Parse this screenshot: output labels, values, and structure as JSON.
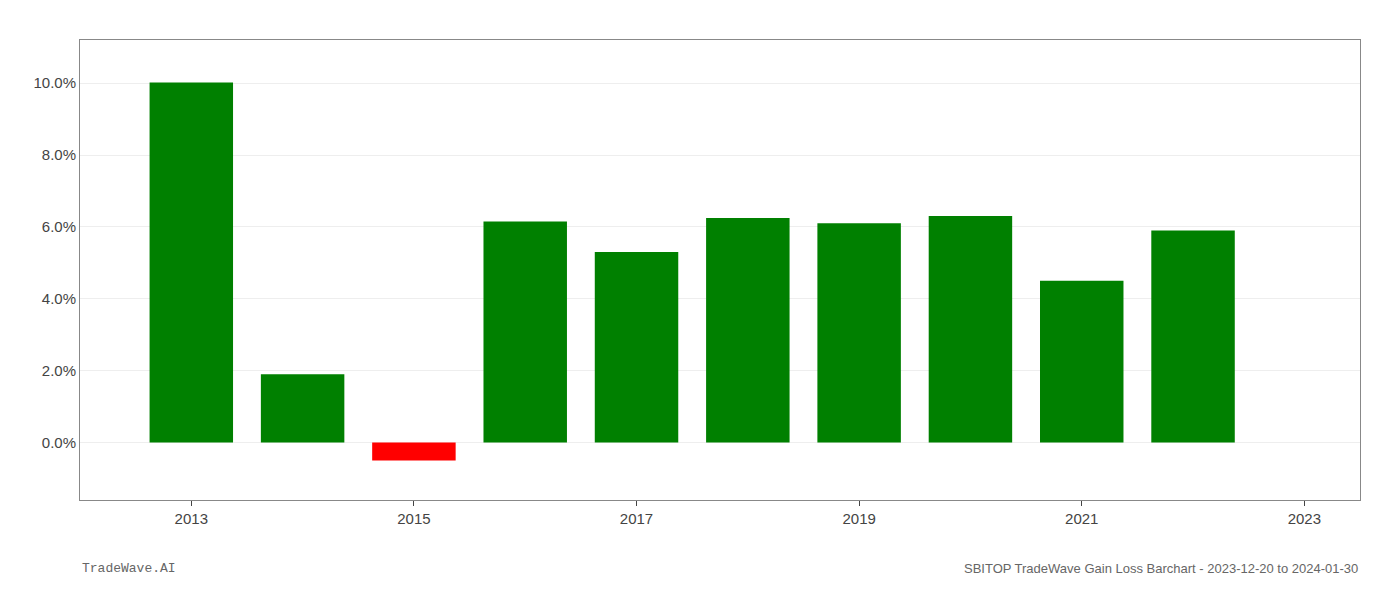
{
  "chart_data": {
    "type": "bar",
    "x": [
      2013,
      2014,
      2015,
      2016,
      2017,
      2018,
      2019,
      2020,
      2021,
      2022
    ],
    "values": [
      0.1002,
      0.019,
      -0.005,
      0.0615,
      0.053,
      0.0625,
      0.061,
      0.063,
      0.045,
      0.059
    ],
    "colors": [
      "#008000",
      "#008000",
      "#ff0000",
      "#008000",
      "#008000",
      "#008000",
      "#008000",
      "#008000",
      "#008000",
      "#008000"
    ],
    "xlim": [
      2012.0,
      2023.5
    ],
    "xticks": [
      2013,
      2015,
      2017,
      2019,
      2021,
      2023
    ],
    "ylim": [
      -0.016,
      0.112
    ],
    "yticks": [
      {
        "value": 0.0,
        "label": "0.0%"
      },
      {
        "value": 0.02,
        "label": "2.0%"
      },
      {
        "value": 0.04,
        "label": "4.0%"
      },
      {
        "value": 0.06,
        "label": "6.0%"
      },
      {
        "value": 0.08,
        "label": "8.0%"
      },
      {
        "value": 0.1,
        "label": "10.0%"
      }
    ],
    "grid": true,
    "annotations": [
      "TradeWave.AI",
      "SBITOP TradeWave Gain Loss Barchart - 2023-12-20 to 2024-01-30"
    ]
  }
}
